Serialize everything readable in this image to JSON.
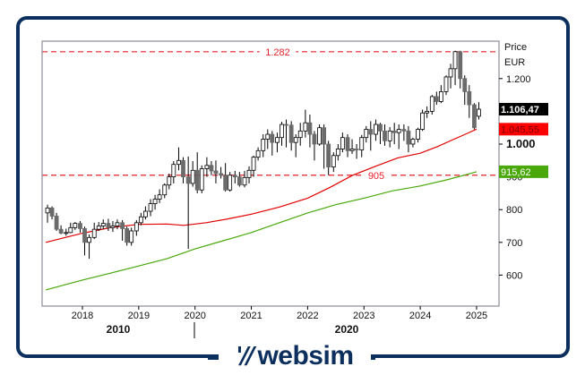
{
  "chart_data": {
    "type": "candlestick",
    "title": "",
    "ylabel": "Price",
    "currency": "EUR",
    "ylim": [
      510,
      1315
    ],
    "y_ticks": [
      "1.200",
      "1.000",
      "900",
      "800",
      "700",
      "600"
    ],
    "y_tick_values": [
      1200,
      1000,
      900,
      800,
      700,
      600
    ],
    "x_ticks": [
      "2018",
      "2019",
      "2020",
      "2021",
      "2022",
      "2023",
      "2024",
      "2025"
    ],
    "x_decade_labels": [
      "2010",
      "2020"
    ],
    "grid": false,
    "reference_lines": [
      {
        "label": "1.282",
        "value": 1282,
        "color": "#e8202a",
        "style": "dashed"
      },
      {
        "label": "905",
        "value": 905,
        "color": "#e8202a",
        "style": "dashed"
      }
    ],
    "price_tags": [
      {
        "label": "1.106,47",
        "value": 1106.47,
        "bg": "#000000",
        "fg": "#ffffff",
        "name": "last-price"
      },
      {
        "label": "1.045,55",
        "value": 1045.55,
        "bg": "#ff0000",
        "fg": "#7a0000",
        "name": "ma-red"
      },
      {
        "label": "915,62",
        "value": 915.62,
        "bg": "#4aa80a",
        "fg": "#ffffff",
        "name": "ma-green"
      }
    ],
    "series": [
      {
        "name": "Moving average (red)",
        "color": "#e00000",
        "points": [
          [
            2017.35,
            700
          ],
          [
            2018.0,
            728
          ],
          [
            2018.5,
            745
          ],
          [
            2019.0,
            755
          ],
          [
            2019.5,
            756
          ],
          [
            2019.8,
            752
          ],
          [
            2020.2,
            760
          ],
          [
            2020.6,
            772
          ],
          [
            2021.0,
            786
          ],
          [
            2021.5,
            808
          ],
          [
            2022.0,
            835
          ],
          [
            2022.4,
            868
          ],
          [
            2022.8,
            905
          ],
          [
            2023.2,
            932
          ],
          [
            2023.6,
            958
          ],
          [
            2024.0,
            972
          ],
          [
            2024.3,
            992
          ],
          [
            2024.6,
            1015
          ],
          [
            2024.8,
            1030
          ],
          [
            2025.0,
            1045.55
          ]
        ]
      },
      {
        "name": "Moving average (green)",
        "color": "#4aa80a",
        "points": [
          [
            2017.35,
            555
          ],
          [
            2018.0,
            585
          ],
          [
            2018.5,
            606
          ],
          [
            2019.0,
            628
          ],
          [
            2019.5,
            650
          ],
          [
            2020.0,
            680
          ],
          [
            2020.5,
            705
          ],
          [
            2021.0,
            730
          ],
          [
            2021.5,
            760
          ],
          [
            2022.0,
            790
          ],
          [
            2022.5,
            815
          ],
          [
            2023.0,
            835
          ],
          [
            2023.5,
            857
          ],
          [
            2024.0,
            872
          ],
          [
            2024.5,
            892
          ],
          [
            2025.0,
            915.62
          ]
        ]
      }
    ],
    "candles": [
      [
        2017.38,
        790,
        805,
        815,
        760
      ],
      [
        2017.46,
        805,
        780,
        810,
        770
      ],
      [
        2017.54,
        780,
        740,
        790,
        735
      ],
      [
        2017.62,
        740,
        728,
        752,
        725
      ],
      [
        2017.71,
        728,
        730,
        742,
        720
      ],
      [
        2017.79,
        730,
        745,
        760,
        728
      ],
      [
        2017.87,
        745,
        758,
        762,
        738
      ],
      [
        2017.96,
        758,
        742,
        765,
        730
      ],
      [
        2018.04,
        742,
        700,
        748,
        660
      ],
      [
        2018.12,
        700,
        715,
        724,
        650
      ],
      [
        2018.21,
        715,
        740,
        760,
        710
      ],
      [
        2018.29,
        740,
        750,
        762,
        735
      ],
      [
        2018.37,
        750,
        758,
        770,
        740
      ],
      [
        2018.46,
        758,
        745,
        772,
        735
      ],
      [
        2018.54,
        745,
        750,
        765,
        732
      ],
      [
        2018.62,
        750,
        760,
        770,
        740
      ],
      [
        2018.71,
        760,
        742,
        768,
        705
      ],
      [
        2018.79,
        742,
        700,
        748,
        690
      ],
      [
        2018.87,
        700,
        735,
        745,
        690
      ],
      [
        2018.96,
        735,
        760,
        768,
        720
      ],
      [
        2019.04,
        760,
        778,
        790,
        752
      ],
      [
        2019.12,
        778,
        795,
        810,
        770
      ],
      [
        2019.21,
        795,
        818,
        832,
        780
      ],
      [
        2019.29,
        818,
        832,
        845,
        800
      ],
      [
        2019.37,
        832,
        845,
        862,
        820
      ],
      [
        2019.46,
        845,
        875,
        880,
        835
      ],
      [
        2019.54,
        875,
        900,
        910,
        862
      ],
      [
        2019.62,
        900,
        938,
        948,
        880
      ],
      [
        2019.71,
        938,
        950,
        990,
        920
      ],
      [
        2019.79,
        950,
        900,
        960,
        880
      ],
      [
        2019.88,
        900,
        880,
        962,
        680
      ],
      [
        2019.96,
        880,
        920,
        948,
        870
      ],
      [
        2020.04,
        920,
        860,
        975,
        850
      ],
      [
        2020.12,
        860,
        925,
        935,
        850
      ],
      [
        2020.21,
        925,
        935,
        960,
        900
      ],
      [
        2020.29,
        935,
        918,
        948,
        905
      ],
      [
        2020.37,
        918,
        910,
        950,
        880
      ],
      [
        2020.46,
        910,
        905,
        930,
        895
      ],
      [
        2020.54,
        905,
        860,
        942,
        855
      ],
      [
        2020.62,
        860,
        905,
        915,
        855
      ],
      [
        2020.71,
        905,
        900,
        918,
        880
      ],
      [
        2020.79,
        900,
        875,
        915,
        870
      ],
      [
        2020.88,
        875,
        898,
        918,
        868
      ],
      [
        2020.96,
        898,
        920,
        932,
        880
      ],
      [
        2021.04,
        920,
        960,
        965,
        900
      ],
      [
        2021.12,
        960,
        980,
        990,
        950
      ],
      [
        2021.21,
        980,
        1015,
        1030,
        960
      ],
      [
        2021.29,
        1015,
        1030,
        1045,
        985
      ],
      [
        2021.37,
        1030,
        1005,
        1040,
        965
      ],
      [
        2021.46,
        1005,
        1020,
        1035,
        975
      ],
      [
        2021.54,
        1020,
        1060,
        1068,
        995
      ],
      [
        2021.62,
        1060,
        1058,
        1075,
        990
      ],
      [
        2021.71,
        1058,
        1005,
        1070,
        980
      ],
      [
        2021.79,
        1005,
        1020,
        1030,
        960
      ],
      [
        2021.87,
        1020,
        1040,
        1065,
        995
      ],
      [
        2021.96,
        1040,
        1065,
        1105,
        1020
      ],
      [
        2022.04,
        1065,
        1030,
        1090,
        990
      ],
      [
        2022.12,
        1030,
        1000,
        1040,
        950
      ],
      [
        2022.21,
        1000,
        1050,
        1060,
        995
      ],
      [
        2022.29,
        1050,
        1000,
        1060,
        925
      ],
      [
        2022.37,
        1000,
        930,
        1010,
        905
      ],
      [
        2022.46,
        930,
        965,
        975,
        915
      ],
      [
        2022.54,
        965,
        985,
        1000,
        950
      ],
      [
        2022.62,
        985,
        1020,
        1035,
        975
      ],
      [
        2022.71,
        1020,
        980,
        1030,
        960
      ],
      [
        2022.79,
        980,
        985,
        1015,
        970
      ],
      [
        2022.87,
        985,
        982,
        1000,
        955
      ],
      [
        2022.96,
        982,
        1020,
        1028,
        960
      ],
      [
        2023.04,
        1020,
        1045,
        1055,
        1005
      ],
      [
        2023.12,
        1045,
        1030,
        1070,
        980
      ],
      [
        2023.21,
        1030,
        1060,
        1075,
        1010
      ],
      [
        2023.29,
        1060,
        1040,
        1065,
        1000
      ],
      [
        2023.37,
        1040,
        1010,
        1060,
        995
      ],
      [
        2023.46,
        1010,
        1040,
        1052,
        990
      ],
      [
        2023.54,
        1040,
        1035,
        1065,
        1000
      ],
      [
        2023.62,
        1035,
        1045,
        1060,
        985
      ],
      [
        2023.71,
        1045,
        1040,
        1060,
        1010
      ],
      [
        2023.79,
        1040,
        1000,
        1055,
        975
      ],
      [
        2023.87,
        1000,
        1015,
        1020,
        990
      ],
      [
        2023.96,
        1015,
        1045,
        1050,
        1005
      ],
      [
        2024.04,
        1045,
        1095,
        1105,
        1040
      ],
      [
        2024.12,
        1095,
        1100,
        1115,
        1080
      ],
      [
        2024.21,
        1100,
        1145,
        1150,
        1090
      ],
      [
        2024.29,
        1145,
        1130,
        1160,
        1120
      ],
      [
        2024.37,
        1130,
        1160,
        1180,
        1125
      ],
      [
        2024.46,
        1160,
        1205,
        1210,
        1150
      ],
      [
        2024.54,
        1205,
        1230,
        1245,
        1170
      ],
      [
        2024.62,
        1230,
        1282,
        1285,
        1180
      ],
      [
        2024.71,
        1282,
        1200,
        1285,
        1170
      ],
      [
        2024.79,
        1200,
        1160,
        1210,
        1120
      ],
      [
        2024.87,
        1160,
        1120,
        1180,
        1080
      ],
      [
        2024.96,
        1120,
        1050,
        1125,
        1045
      ],
      [
        2025.04,
        1085,
        1106.47,
        1128,
        1075
      ]
    ]
  },
  "axis": {
    "price_label": "Price",
    "currency_label": "EUR"
  },
  "brand": {
    "name": "websim",
    "mark": "'//",
    "color": "#0d2f5e"
  }
}
